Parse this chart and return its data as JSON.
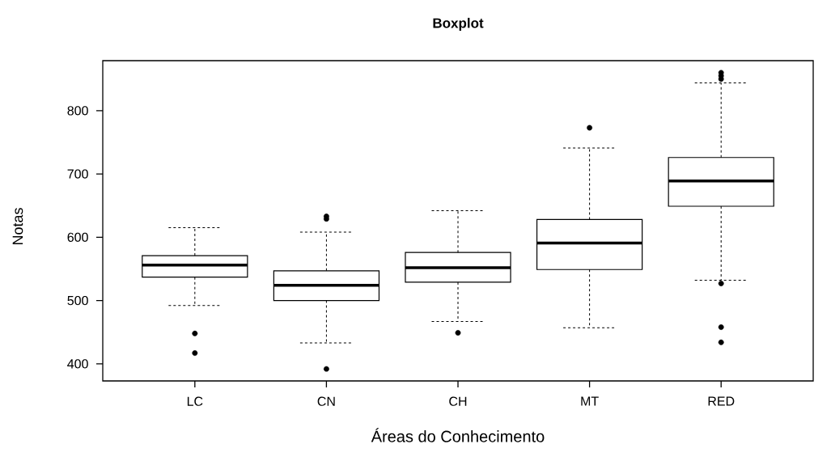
{
  "chart_data": {
    "type": "box",
    "title": "Boxplot",
    "xlabel": "Áreas do Conhecimento",
    "ylabel": "Notas",
    "categories": [
      "LC",
      "CN",
      "CH",
      "MT",
      "RED"
    ],
    "boxes": [
      {
        "low": 492,
        "q1": 537,
        "median": 556,
        "q3": 571,
        "high": 615,
        "outliers": [
          448,
          417
        ]
      },
      {
        "low": 433,
        "q1": 500,
        "median": 524,
        "q3": 547,
        "high": 608,
        "outliers": [
          629,
          633,
          392
        ]
      },
      {
        "low": 467,
        "q1": 529,
        "median": 552,
        "q3": 576,
        "high": 642,
        "outliers": [
          449
        ]
      },
      {
        "low": 457,
        "q1": 549,
        "median": 591,
        "q3": 628,
        "high": 741,
        "outliers": [
          773
        ]
      },
      {
        "low": 532,
        "q1": 649,
        "median": 689,
        "q3": 726,
        "high": 844,
        "outliers": [
          860,
          855,
          850,
          527,
          458,
          434
        ]
      }
    ],
    "ylim": [
      373,
      879
    ],
    "yticks": [
      400,
      500,
      600,
      700,
      800
    ],
    "grid": false
  }
}
